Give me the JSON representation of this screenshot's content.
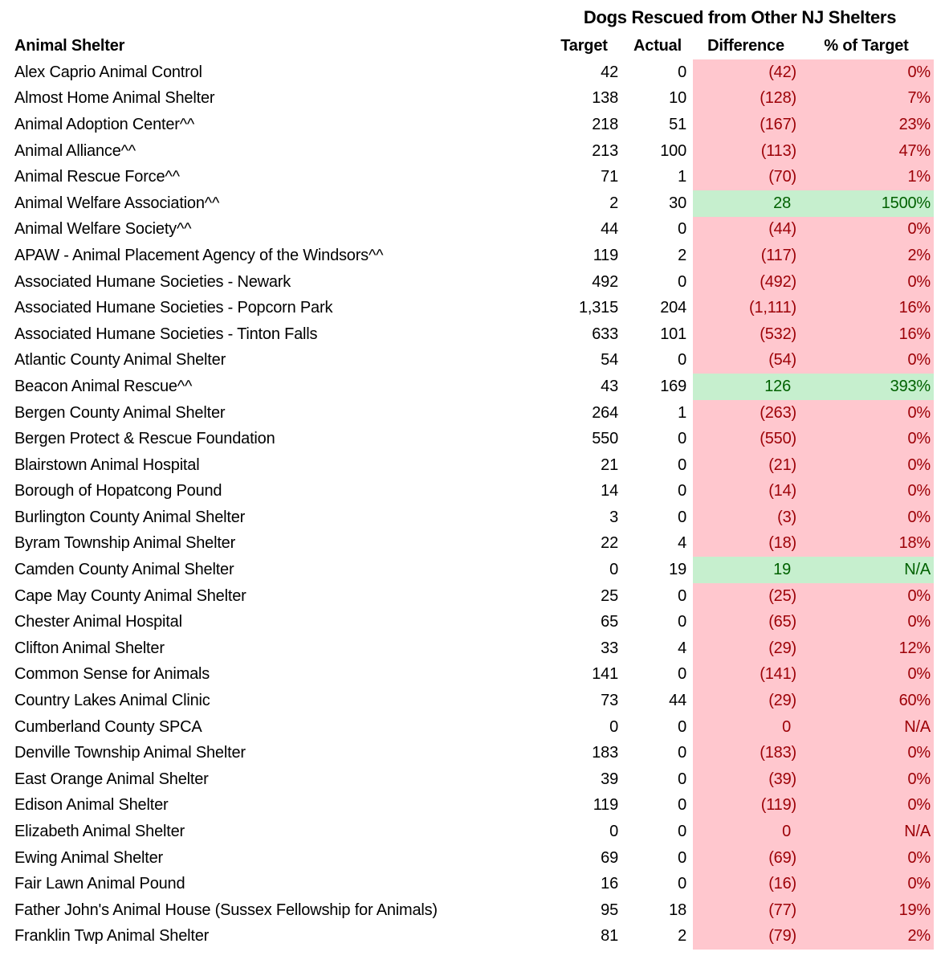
{
  "table": {
    "title": "Dogs Rescued from Other NJ Shelters",
    "columns": [
      "Animal Shelter",
      "Target",
      "Actual",
      "Difference",
      "% of Target"
    ],
    "colors": {
      "negative_bg": "#FFC7CE",
      "negative_text": "#9C0006",
      "positive_bg": "#C6EFCE",
      "positive_text": "#006100"
    },
    "rows": [
      {
        "name": "Alex Caprio Animal Control",
        "target": "42",
        "actual": "0",
        "difference": "(42)",
        "pct": "0%",
        "status": "negative"
      },
      {
        "name": "Almost Home Animal Shelter",
        "target": "138",
        "actual": "10",
        "difference": "(128)",
        "pct": "7%",
        "status": "negative"
      },
      {
        "name": "Animal Adoption Center^^",
        "target": "218",
        "actual": "51",
        "difference": "(167)",
        "pct": "23%",
        "status": "negative"
      },
      {
        "name": "Animal Alliance^^",
        "target": "213",
        "actual": "100",
        "difference": "(113)",
        "pct": "47%",
        "status": "negative"
      },
      {
        "name": "Animal Rescue Force^^",
        "target": "71",
        "actual": "1",
        "difference": "(70)",
        "pct": "1%",
        "status": "negative"
      },
      {
        "name": "Animal Welfare Association^^",
        "target": "2",
        "actual": "30",
        "difference": "28",
        "pct": "1500%",
        "status": "positive"
      },
      {
        "name": "Animal Welfare Society^^",
        "target": "44",
        "actual": "0",
        "difference": "(44)",
        "pct": "0%",
        "status": "negative"
      },
      {
        "name": "APAW - Animal Placement Agency of the Windsors^^",
        "target": "119",
        "actual": "2",
        "difference": "(117)",
        "pct": "2%",
        "status": "negative"
      },
      {
        "name": "Associated Humane Societies - Newark",
        "target": "492",
        "actual": "0",
        "difference": "(492)",
        "pct": "0%",
        "status": "negative"
      },
      {
        "name": "Associated Humane Societies - Popcorn Park",
        "target": "1,315",
        "actual": "204",
        "difference": "(1,111)",
        "pct": "16%",
        "status": "negative"
      },
      {
        "name": "Associated Humane Societies - Tinton Falls",
        "target": "633",
        "actual": "101",
        "difference": "(532)",
        "pct": "16%",
        "status": "negative"
      },
      {
        "name": "Atlantic County Animal Shelter",
        "target": "54",
        "actual": "0",
        "difference": "(54)",
        "pct": "0%",
        "status": "negative"
      },
      {
        "name": "Beacon Animal Rescue^^",
        "target": "43",
        "actual": "169",
        "difference": "126",
        "pct": "393%",
        "status": "positive"
      },
      {
        "name": "Bergen County Animal Shelter",
        "target": "264",
        "actual": "1",
        "difference": "(263)",
        "pct": "0%",
        "status": "negative"
      },
      {
        "name": "Bergen Protect & Rescue Foundation",
        "target": "550",
        "actual": "0",
        "difference": "(550)",
        "pct": "0%",
        "status": "negative"
      },
      {
        "name": "Blairstown Animal Hospital",
        "target": "21",
        "actual": "0",
        "difference": "(21)",
        "pct": "0%",
        "status": "negative"
      },
      {
        "name": "Borough of Hopatcong Pound",
        "target": "14",
        "actual": "0",
        "difference": "(14)",
        "pct": "0%",
        "status": "negative"
      },
      {
        "name": "Burlington County Animal Shelter",
        "target": "3",
        "actual": "0",
        "difference": "(3)",
        "pct": "0%",
        "status": "negative"
      },
      {
        "name": "Byram Township Animal Shelter",
        "target": "22",
        "actual": "4",
        "difference": "(18)",
        "pct": "18%",
        "status": "negative"
      },
      {
        "name": "Camden County Animal Shelter",
        "target": "0",
        "actual": "19",
        "difference": "19",
        "pct": "N/A",
        "status": "positive"
      },
      {
        "name": "Cape May County Animal Shelter",
        "target": "25",
        "actual": "0",
        "difference": "(25)",
        "pct": "0%",
        "status": "negative"
      },
      {
        "name": "Chester Animal Hospital",
        "target": "65",
        "actual": "0",
        "difference": "(65)",
        "pct": "0%",
        "status": "negative"
      },
      {
        "name": "Clifton Animal Shelter",
        "target": "33",
        "actual": "4",
        "difference": "(29)",
        "pct": "12%",
        "status": "negative"
      },
      {
        "name": "Common Sense for Animals",
        "target": "141",
        "actual": "0",
        "difference": "(141)",
        "pct": "0%",
        "status": "negative"
      },
      {
        "name": "Country Lakes Animal Clinic",
        "target": "73",
        "actual": "44",
        "difference": "(29)",
        "pct": "60%",
        "status": "negative"
      },
      {
        "name": "Cumberland County SPCA",
        "target": "0",
        "actual": "0",
        "difference": "0",
        "pct": "N/A",
        "status": "negative"
      },
      {
        "name": "Denville Township Animal Shelter",
        "target": "183",
        "actual": "0",
        "difference": "(183)",
        "pct": "0%",
        "status": "negative"
      },
      {
        "name": "East Orange Animal Shelter",
        "target": "39",
        "actual": "0",
        "difference": "(39)",
        "pct": "0%",
        "status": "negative"
      },
      {
        "name": "Edison Animal Shelter",
        "target": "119",
        "actual": "0",
        "difference": "(119)",
        "pct": "0%",
        "status": "negative"
      },
      {
        "name": "Elizabeth Animal Shelter",
        "target": "0",
        "actual": "0",
        "difference": "0",
        "pct": "N/A",
        "status": "negative"
      },
      {
        "name": "Ewing Animal Shelter",
        "target": "69",
        "actual": "0",
        "difference": "(69)",
        "pct": "0%",
        "status": "negative"
      },
      {
        "name": "Fair Lawn Animal Pound",
        "target": "16",
        "actual": "0",
        "difference": "(16)",
        "pct": "0%",
        "status": "negative"
      },
      {
        "name": "Father John's Animal House (Sussex Fellowship for Animals)",
        "target": "95",
        "actual": "18",
        "difference": "(77)",
        "pct": "19%",
        "status": "negative"
      },
      {
        "name": "Franklin Twp Animal Shelter",
        "target": "81",
        "actual": "2",
        "difference": "(79)",
        "pct": "2%",
        "status": "negative"
      }
    ]
  }
}
